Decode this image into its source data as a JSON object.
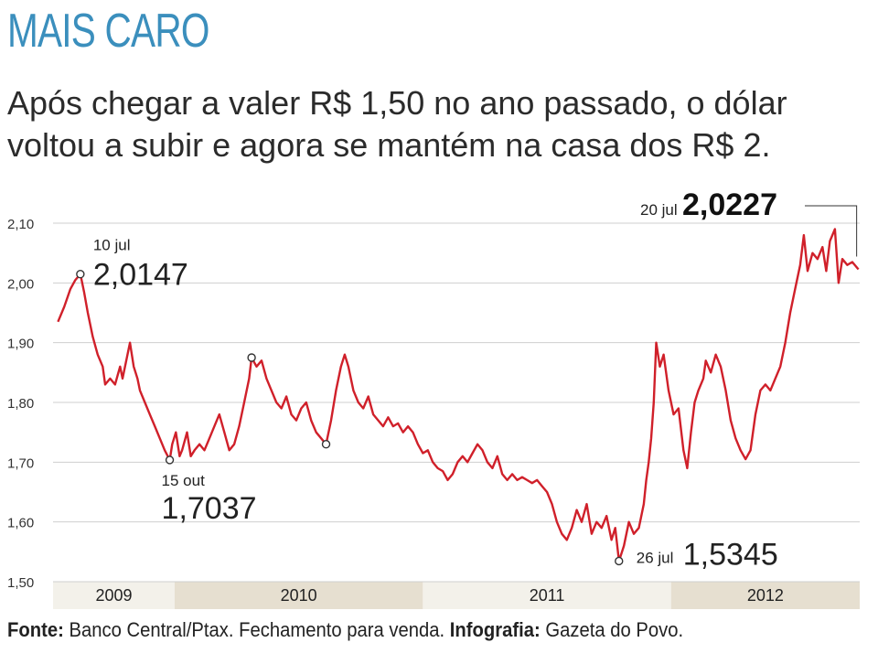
{
  "header": {
    "kicker": "MAIS CARO",
    "subtitle": "Após chegar a valer R$ 1,50 no ano passado, o dólar voltou a subir e agora se mantém na casa dos R$ 2."
  },
  "footer": {
    "source_label": "Fonte:",
    "source_text": "Banco Central/Ptax. Fechamento para venda.",
    "graphics_label": "Infografia:",
    "graphics_text": "Gazeta do Povo."
  },
  "colors": {
    "line": "#d0202a",
    "kicker": "#3b8fbd",
    "band_light": "#f3f1ea",
    "band_dark": "#e6dfd0",
    "grid": "#cfcfcf"
  },
  "chart_data": {
    "type": "line",
    "title": "",
    "xlabel": "",
    "ylabel": "",
    "ylim": [
      1.5,
      2.1
    ],
    "yticks": [
      "2,10",
      "2,00",
      "1,90",
      "1,80",
      "1,70",
      "1,60",
      "1,50"
    ],
    "grid": true,
    "x_period": [
      "2009",
      "2012"
    ],
    "year_bands": [
      {
        "label": "2009",
        "start": 2009.3,
        "end": 2009.79
      },
      {
        "label": "2010",
        "start": 2009.79,
        "end": 2010.79
      },
      {
        "label": "2011",
        "start": 2010.79,
        "end": 2011.79
      },
      {
        "label": "2012",
        "start": 2011.79,
        "end": 2012.55
      }
    ],
    "series": [
      {
        "values": [
          [
            2009.32,
            1.935
          ],
          [
            2009.345,
            1.96
          ],
          [
            2009.37,
            1.99
          ],
          [
            2009.39,
            2.005
          ],
          [
            2009.41,
            2.0147
          ],
          [
            2009.425,
            1.985
          ],
          [
            2009.44,
            1.95
          ],
          [
            2009.46,
            1.91
          ],
          [
            2009.48,
            1.88
          ],
          [
            2009.5,
            1.86
          ],
          [
            2009.51,
            1.83
          ],
          [
            2009.53,
            1.84
          ],
          [
            2009.55,
            1.83
          ],
          [
            2009.57,
            1.86
          ],
          [
            2009.58,
            1.84
          ],
          [
            2009.6,
            1.88
          ],
          [
            2009.61,
            1.9
          ],
          [
            2009.625,
            1.86
          ],
          [
            2009.64,
            1.84
          ],
          [
            2009.65,
            1.82
          ],
          [
            2009.67,
            1.8
          ],
          [
            2009.69,
            1.78
          ],
          [
            2009.71,
            1.76
          ],
          [
            2009.73,
            1.74
          ],
          [
            2009.75,
            1.72
          ],
          [
            2009.77,
            1.7037
          ],
          [
            2009.78,
            1.73
          ],
          [
            2009.795,
            1.75
          ],
          [
            2009.81,
            1.71
          ],
          [
            2009.82,
            1.72
          ],
          [
            2009.84,
            1.75
          ],
          [
            2009.855,
            1.71
          ],
          [
            2009.87,
            1.72
          ],
          [
            2009.89,
            1.73
          ],
          [
            2009.91,
            1.72
          ],
          [
            2009.93,
            1.74
          ],
          [
            2009.95,
            1.76
          ],
          [
            2009.97,
            1.78
          ],
          [
            2009.99,
            1.75
          ],
          [
            2010.01,
            1.72
          ],
          [
            2010.03,
            1.73
          ],
          [
            2010.05,
            1.76
          ],
          [
            2010.07,
            1.8
          ],
          [
            2010.09,
            1.84
          ],
          [
            2010.1,
            1.875
          ],
          [
            2010.12,
            1.86
          ],
          [
            2010.14,
            1.87
          ],
          [
            2010.16,
            1.84
          ],
          [
            2010.18,
            1.82
          ],
          [
            2010.2,
            1.8
          ],
          [
            2010.22,
            1.79
          ],
          [
            2010.24,
            1.81
          ],
          [
            2010.26,
            1.78
          ],
          [
            2010.28,
            1.77
          ],
          [
            2010.3,
            1.79
          ],
          [
            2010.32,
            1.8
          ],
          [
            2010.34,
            1.77
          ],
          [
            2010.36,
            1.75
          ],
          [
            2010.38,
            1.74
          ],
          [
            2010.4,
            1.73
          ],
          [
            2010.42,
            1.77
          ],
          [
            2010.44,
            1.82
          ],
          [
            2010.46,
            1.86
          ],
          [
            2010.475,
            1.88
          ],
          [
            2010.49,
            1.86
          ],
          [
            2010.51,
            1.82
          ],
          [
            2010.53,
            1.8
          ],
          [
            2010.55,
            1.79
          ],
          [
            2010.57,
            1.81
          ],
          [
            2010.59,
            1.78
          ],
          [
            2010.61,
            1.77
          ],
          [
            2010.63,
            1.76
          ],
          [
            2010.65,
            1.775
          ],
          [
            2010.67,
            1.76
          ],
          [
            2010.69,
            1.765
          ],
          [
            2010.71,
            1.75
          ],
          [
            2010.73,
            1.76
          ],
          [
            2010.75,
            1.75
          ],
          [
            2010.77,
            1.73
          ],
          [
            2010.79,
            1.715
          ],
          [
            2010.81,
            1.72
          ],
          [
            2010.83,
            1.7
          ],
          [
            2010.85,
            1.69
          ],
          [
            2010.87,
            1.685
          ],
          [
            2010.89,
            1.67
          ],
          [
            2010.91,
            1.68
          ],
          [
            2010.93,
            1.7
          ],
          [
            2010.95,
            1.71
          ],
          [
            2010.97,
            1.7
          ],
          [
            2010.99,
            1.715
          ],
          [
            2011.01,
            1.73
          ],
          [
            2011.03,
            1.72
          ],
          [
            2011.05,
            1.7
          ],
          [
            2011.07,
            1.69
          ],
          [
            2011.09,
            1.71
          ],
          [
            2011.11,
            1.68
          ],
          [
            2011.13,
            1.67
          ],
          [
            2011.15,
            1.68
          ],
          [
            2011.17,
            1.67
          ],
          [
            2011.19,
            1.675
          ],
          [
            2011.21,
            1.67
          ],
          [
            2011.23,
            1.665
          ],
          [
            2011.25,
            1.67
          ],
          [
            2011.27,
            1.66
          ],
          [
            2011.29,
            1.65
          ],
          [
            2011.31,
            1.63
          ],
          [
            2011.33,
            1.6
          ],
          [
            2011.35,
            1.58
          ],
          [
            2011.37,
            1.57
          ],
          [
            2011.39,
            1.59
          ],
          [
            2011.41,
            1.62
          ],
          [
            2011.43,
            1.6
          ],
          [
            2011.45,
            1.63
          ],
          [
            2011.47,
            1.58
          ],
          [
            2011.49,
            1.6
          ],
          [
            2011.51,
            1.59
          ],
          [
            2011.53,
            1.61
          ],
          [
            2011.55,
            1.57
          ],
          [
            2011.565,
            1.59
          ],
          [
            2011.58,
            1.5345
          ],
          [
            2011.6,
            1.56
          ],
          [
            2011.62,
            1.6
          ],
          [
            2011.64,
            1.58
          ],
          [
            2011.66,
            1.59
          ],
          [
            2011.68,
            1.63
          ],
          [
            2011.69,
            1.67
          ],
          [
            2011.7,
            1.7
          ],
          [
            2011.71,
            1.74
          ],
          [
            2011.72,
            1.8
          ],
          [
            2011.73,
            1.9
          ],
          [
            2011.745,
            1.86
          ],
          [
            2011.76,
            1.88
          ],
          [
            2011.78,
            1.82
          ],
          [
            2011.8,
            1.78
          ],
          [
            2011.82,
            1.79
          ],
          [
            2011.84,
            1.72
          ],
          [
            2011.855,
            1.69
          ],
          [
            2011.87,
            1.75
          ],
          [
            2011.885,
            1.8
          ],
          [
            2011.9,
            1.82
          ],
          [
            2011.92,
            1.84
          ],
          [
            2011.93,
            1.87
          ],
          [
            2011.95,
            1.85
          ],
          [
            2011.97,
            1.88
          ],
          [
            2011.99,
            1.86
          ],
          [
            2012.01,
            1.82
          ],
          [
            2012.03,
            1.77
          ],
          [
            2012.05,
            1.74
          ],
          [
            2012.07,
            1.72
          ],
          [
            2012.09,
            1.705
          ],
          [
            2012.11,
            1.72
          ],
          [
            2012.13,
            1.78
          ],
          [
            2012.15,
            1.82
          ],
          [
            2012.17,
            1.83
          ],
          [
            2012.19,
            1.82
          ],
          [
            2012.21,
            1.84
          ],
          [
            2012.23,
            1.86
          ],
          [
            2012.25,
            1.9
          ],
          [
            2012.27,
            1.95
          ],
          [
            2012.29,
            1.99
          ],
          [
            2012.31,
            2.03
          ],
          [
            2012.325,
            2.08
          ],
          [
            2012.34,
            2.02
          ],
          [
            2012.36,
            2.05
          ],
          [
            2012.38,
            2.04
          ],
          [
            2012.4,
            2.06
          ],
          [
            2012.415,
            2.02
          ],
          [
            2012.43,
            2.07
          ],
          [
            2012.45,
            2.09
          ],
          [
            2012.465,
            2.0
          ],
          [
            2012.48,
            2.04
          ],
          [
            2012.5,
            2.03
          ],
          [
            2012.52,
            2.035
          ],
          [
            2012.545,
            2.0227
          ]
        ]
      }
    ],
    "annotations": [
      {
        "date": "10 jul",
        "value": "2,0147",
        "x": 2009.41,
        "y": 2.0147,
        "marker": true,
        "bold": false,
        "placement": "right-above"
      },
      {
        "date": "15 out",
        "value": "1,7037",
        "x": 2009.77,
        "y": 1.7037,
        "marker": true,
        "bold": false,
        "placement": "below"
      },
      {
        "date": "26 jul",
        "value": "1,5345",
        "x": 2011.58,
        "y": 1.5345,
        "marker": true,
        "bold": false,
        "placement": "right"
      },
      {
        "date": "20 jul",
        "value": "2,0227",
        "x": 2012.545,
        "y": 2.0227,
        "marker": false,
        "bold": true,
        "placement": "above-left-leader"
      }
    ],
    "extra_markers": [
      {
        "x": 2010.1,
        "y": 1.875
      },
      {
        "x": 2010.4,
        "y": 1.73
      }
    ]
  }
}
